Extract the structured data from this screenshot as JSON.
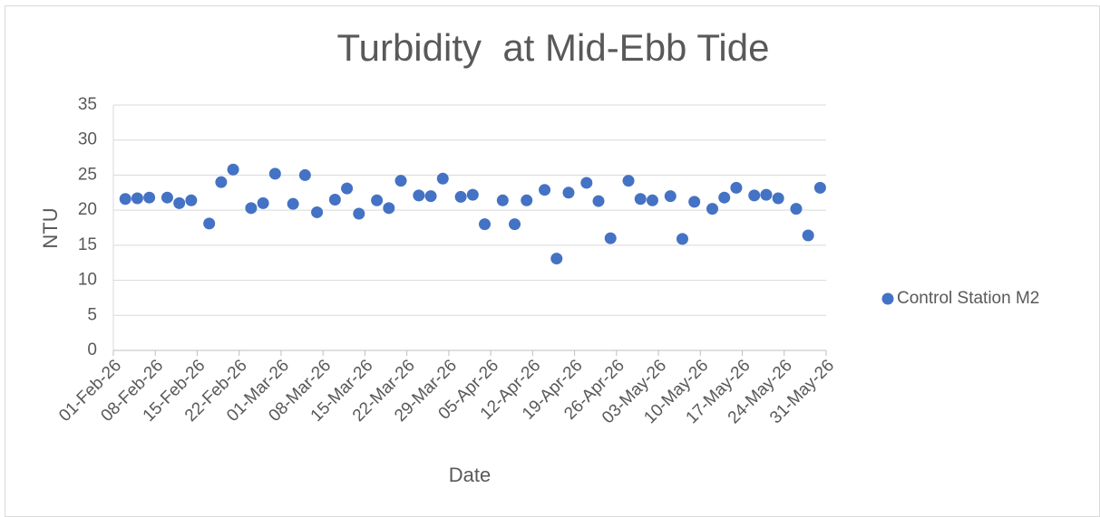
{
  "chart_data": {
    "type": "scatter",
    "title": "Turbidity  at Mid-Ebb Tide",
    "x_label": "Date",
    "y_label": "NTU",
    "series": [
      {
        "name": "Control Station M2",
        "color": "#4472c4",
        "x": [
          "2026-02-03",
          "2026-02-05",
          "2026-02-07",
          "2026-02-10",
          "2026-02-12",
          "2026-02-14",
          "2026-02-17",
          "2026-02-19",
          "2026-02-21",
          "2026-02-24",
          "2026-02-26",
          "2026-02-28",
          "2026-03-03",
          "2026-03-05",
          "2026-03-07",
          "2026-03-10",
          "2026-03-12",
          "2026-03-14",
          "2026-03-17",
          "2026-03-19",
          "2026-03-21",
          "2026-03-24",
          "2026-03-26",
          "2026-03-28",
          "2026-03-31",
          "2026-04-02",
          "2026-04-04",
          "2026-04-07",
          "2026-04-09",
          "2026-04-11",
          "2026-04-14",
          "2026-04-16",
          "2026-04-18",
          "2026-04-21",
          "2026-04-23",
          "2026-04-25",
          "2026-04-28",
          "2026-04-30",
          "2026-05-02",
          "2026-05-05",
          "2026-05-07",
          "2026-05-09",
          "2026-05-12",
          "2026-05-14",
          "2026-05-16",
          "2026-05-19",
          "2026-05-21",
          "2026-05-23",
          "2026-05-26",
          "2026-05-28",
          "2026-05-30"
        ],
        "values": [
          21.6,
          21.7,
          21.8,
          21.8,
          21.0,
          21.4,
          18.1,
          24.0,
          25.8,
          20.3,
          21.0,
          25.2,
          20.9,
          25.0,
          19.7,
          21.5,
          23.1,
          19.5,
          21.4,
          20.3,
          24.2,
          22.1,
          22.0,
          24.5,
          21.9,
          22.2,
          18.0,
          21.4,
          18.0,
          21.4,
          22.9,
          13.1,
          22.5,
          23.9,
          21.3,
          16.0,
          24.2,
          21.6,
          21.4,
          22.0,
          15.9,
          21.2,
          20.2,
          21.8,
          23.2,
          22.1,
          22.2,
          21.7,
          20.2,
          16.4,
          23.2
        ]
      }
    ],
    "xlim": [
      "2026-02-01",
      "2026-05-31"
    ],
    "xticks": [
      {
        "value": "2026-02-01",
        "label": "01-Feb-26"
      },
      {
        "value": "2026-02-08",
        "label": "08-Feb-26"
      },
      {
        "value": "2026-02-15",
        "label": "15-Feb-26"
      },
      {
        "value": "2026-02-22",
        "label": "22-Feb-26"
      },
      {
        "value": "2026-03-01",
        "label": "01-Mar-26"
      },
      {
        "value": "2026-03-08",
        "label": "08-Mar-26"
      },
      {
        "value": "2026-03-15",
        "label": "15-Mar-26"
      },
      {
        "value": "2026-03-22",
        "label": "22-Mar-26"
      },
      {
        "value": "2026-03-29",
        "label": "29-Mar-26"
      },
      {
        "value": "2026-04-05",
        "label": "05-Apr-26"
      },
      {
        "value": "2026-04-12",
        "label": "12-Apr-26"
      },
      {
        "value": "2026-04-19",
        "label": "19-Apr-26"
      },
      {
        "value": "2026-04-26",
        "label": "26-Apr-26"
      },
      {
        "value": "2026-05-03",
        "label": "03-May-26"
      },
      {
        "value": "2026-05-10",
        "label": "10-May-26"
      },
      {
        "value": "2026-05-17",
        "label": "17-May-26"
      },
      {
        "value": "2026-05-24",
        "label": "24-May-26"
      },
      {
        "value": "2026-05-31",
        "label": "31-May-26"
      }
    ],
    "ylim": [
      0,
      35
    ],
    "yticks": [
      0,
      5,
      10,
      15,
      20,
      25,
      30,
      35
    ],
    "grid": true,
    "legend": "right"
  }
}
